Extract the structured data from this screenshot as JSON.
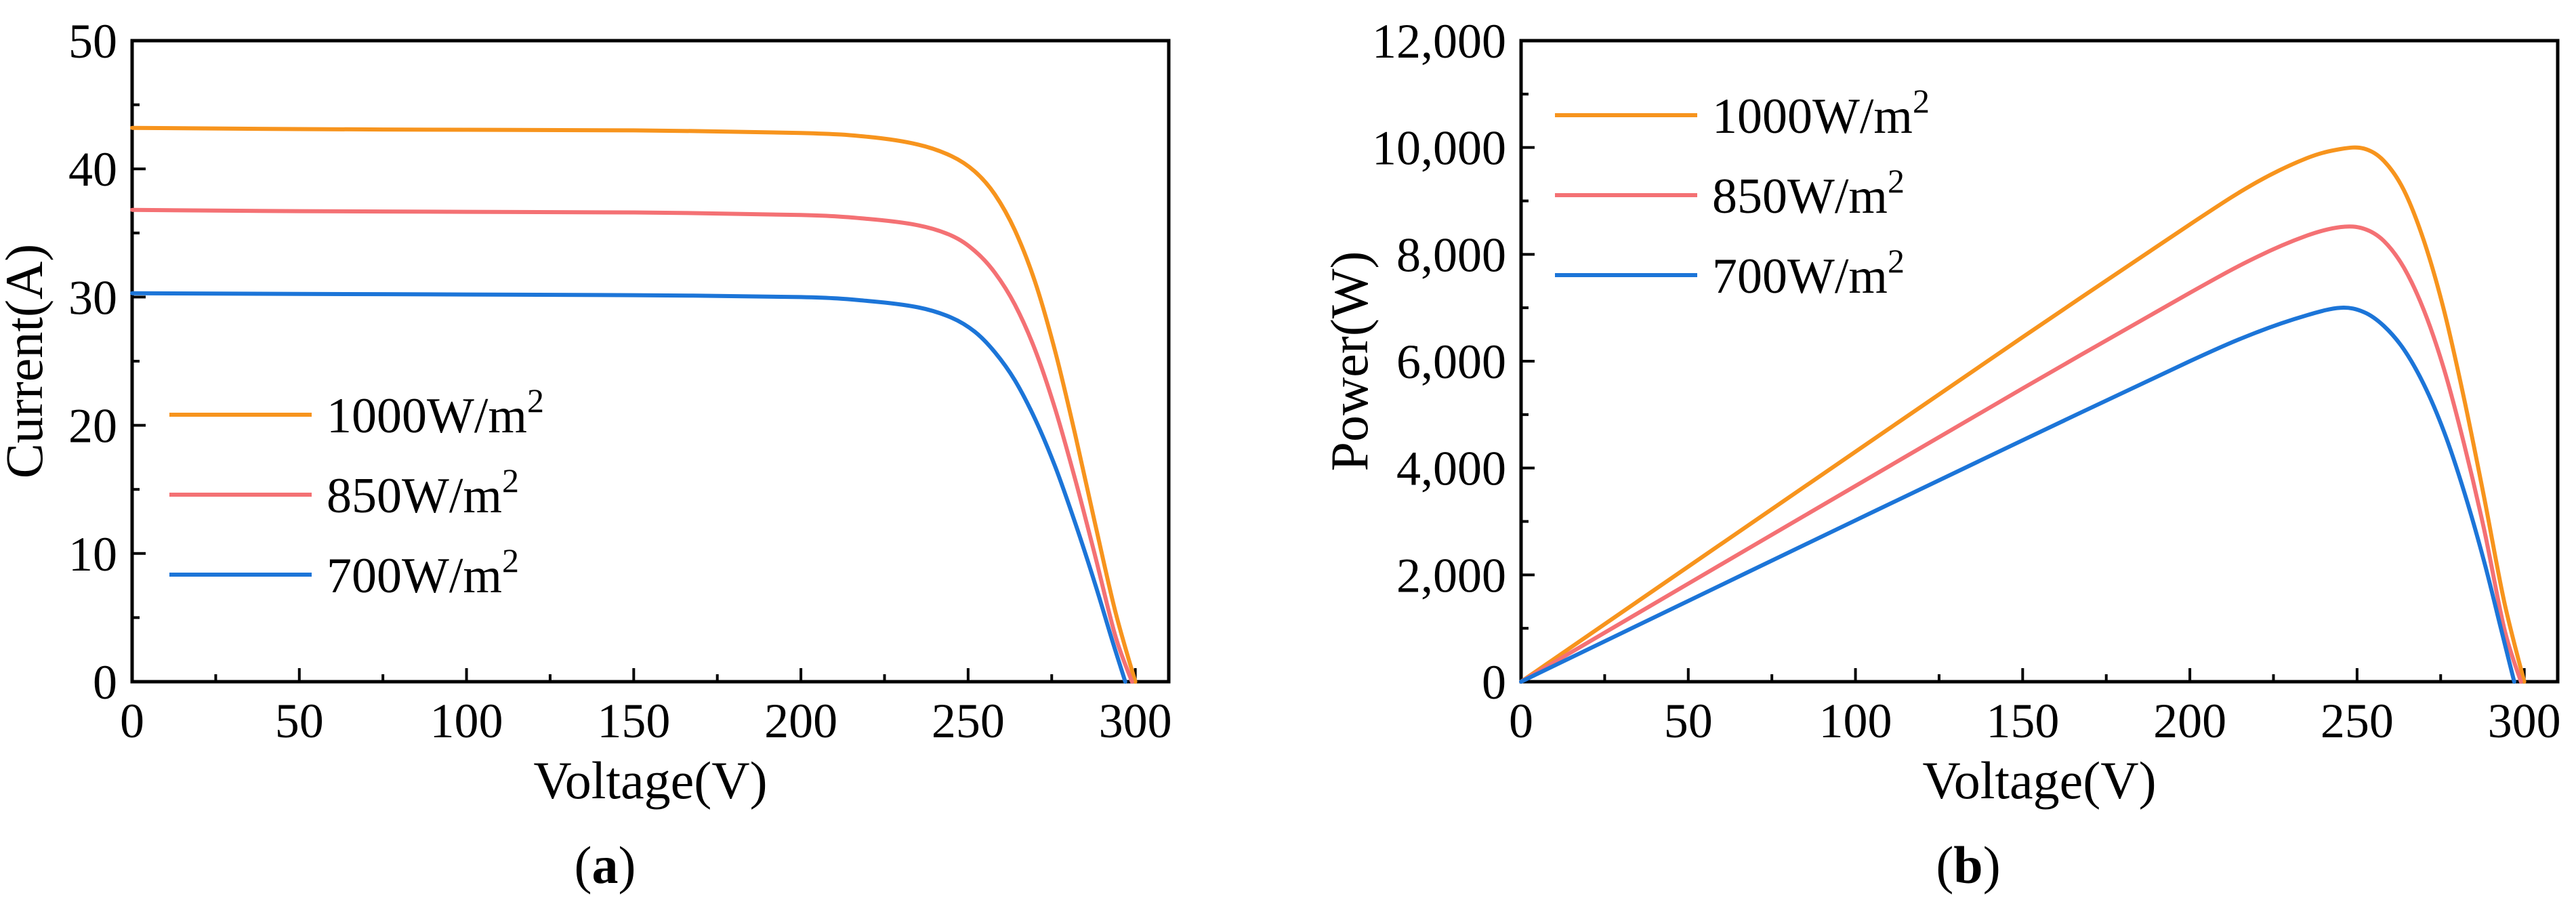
{
  "chart_data": [
    {
      "id": "a",
      "type": "line",
      "panel_label_prefix": "(",
      "panel_label": "a",
      "panel_label_suffix": ")",
      "xlabel": "Voltage(V)",
      "ylabel": "Current(A)",
      "xlim": [
        0,
        310
      ],
      "ylim": [
        0,
        50
      ],
      "xticks": [
        0,
        50,
        100,
        150,
        200,
        250,
        300
      ],
      "yticks": [
        0,
        10,
        20,
        30,
        40,
        50
      ],
      "xtick_labels": [
        "0",
        "50",
        "100",
        "150",
        "200",
        "250",
        "300"
      ],
      "ytick_labels": [
        "0",
        "10",
        "20",
        "30",
        "40",
        "50"
      ],
      "grid": false,
      "legend_position": "middle-left",
      "series": [
        {
          "name": "1000W/m2",
          "label_base": "1000W/m",
          "label_sup": "2",
          "color": "#F7941D",
          "x": [
            0,
            50,
            100,
            150,
            200,
            220,
            235,
            245,
            252,
            258,
            264,
            270,
            276,
            282,
            288,
            294,
            300
          ],
          "y": [
            43.2,
            43.1,
            43.05,
            43.0,
            42.8,
            42.5,
            41.9,
            41.0,
            39.8,
            38.0,
            35.2,
            31.2,
            25.8,
            19.3,
            12.3,
            5.5,
            0
          ]
        },
        {
          "name": "850W/m2",
          "label_base": "850W/m",
          "label_sup": "2",
          "color": "#F47174",
          "x": [
            0,
            50,
            100,
            150,
            200,
            220,
            235,
            245,
            252,
            258,
            264,
            270,
            276,
            282,
            288,
            294,
            299
          ],
          "y": [
            36.8,
            36.7,
            36.65,
            36.6,
            36.4,
            36.1,
            35.6,
            34.8,
            33.6,
            31.9,
            29.4,
            25.9,
            21.3,
            15.8,
            9.8,
            3.6,
            0
          ]
        },
        {
          "name": "700W/m2",
          "label_base": "700W/m",
          "label_sup": "2",
          "color": "#1C75D8",
          "x": [
            0,
            50,
            100,
            150,
            200,
            220,
            235,
            245,
            252,
            258,
            264,
            270,
            276,
            282,
            288,
            293,
            297
          ],
          "y": [
            30.3,
            30.25,
            30.2,
            30.15,
            30.0,
            29.7,
            29.2,
            28.4,
            27.3,
            25.7,
            23.5,
            20.5,
            16.8,
            12.4,
            7.6,
            3.3,
            0
          ]
        }
      ]
    },
    {
      "id": "b",
      "type": "line",
      "panel_label_prefix": "(",
      "panel_label": "b",
      "panel_label_suffix": ")",
      "xlabel": "Voltage(V)",
      "ylabel": "Power(W)",
      "xlim": [
        0,
        310
      ],
      "ylim": [
        0,
        12000
      ],
      "xticks": [
        0,
        50,
        100,
        150,
        200,
        250,
        300
      ],
      "yticks": [
        0,
        2000,
        4000,
        6000,
        8000,
        10000,
        12000
      ],
      "xtick_labels": [
        "0",
        "50",
        "100",
        "150",
        "200",
        "250",
        "300"
      ],
      "ytick_labels": [
        "0",
        "2,000",
        "4,000",
        "6,000",
        "8,000",
        "10,000",
        "12,000"
      ],
      "grid": false,
      "legend_position": "top-left",
      "series": [
        {
          "name": "1000W/m2",
          "label_base": "1000W/m",
          "label_sup": "2",
          "color": "#F7941D",
          "x": [
            0,
            50,
            100,
            150,
            200,
            220,
            235,
            245,
            252,
            258,
            264,
            270,
            276,
            282,
            288,
            294,
            300
          ],
          "y": [
            0,
            2155,
            4305,
            6450,
            8560,
            9350,
            9800,
            9970,
            9980,
            9750,
            9200,
            8250,
            6950,
            5300,
            3450,
            1500,
            0
          ]
        },
        {
          "name": "850W/m2",
          "label_base": "850W/m",
          "label_sup": "2",
          "color": "#F47174",
          "x": [
            0,
            50,
            100,
            150,
            200,
            220,
            235,
            245,
            252,
            258,
            264,
            270,
            276,
            282,
            288,
            294,
            299
          ],
          "y": [
            0,
            1835,
            3665,
            5490,
            7280,
            7950,
            8350,
            8510,
            8480,
            8250,
            7750,
            6950,
            5850,
            4450,
            2850,
            1000,
            0
          ]
        },
        {
          "name": "700W/m2",
          "label_base": "700W/m",
          "label_sup": "2",
          "color": "#1C75D8",
          "x": [
            0,
            50,
            100,
            150,
            200,
            220,
            235,
            245,
            252,
            258,
            264,
            270,
            276,
            282,
            288,
            293,
            297
          ],
          "y": [
            0,
            1512,
            3020,
            4520,
            6000,
            6540,
            6860,
            7000,
            6920,
            6660,
            6220,
            5560,
            4680,
            3560,
            2250,
            1000,
            0
          ]
        }
      ]
    }
  ]
}
